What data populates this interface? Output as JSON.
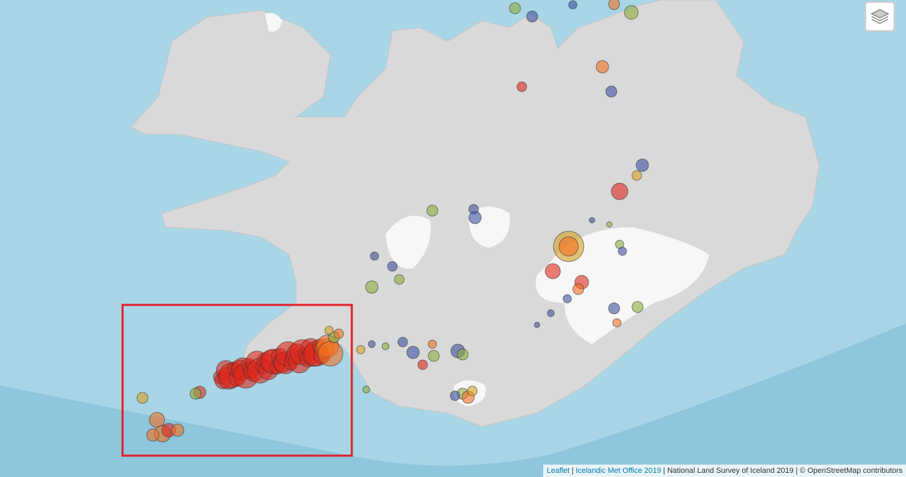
{
  "attribution": {
    "links": [
      "Leaflet",
      "Icelandic Met Office 2019"
    ],
    "texts": [
      "National Land Survey of Iceland 2019",
      "© OpenStreetMap contributors"
    ],
    "separator": "|"
  }
}
